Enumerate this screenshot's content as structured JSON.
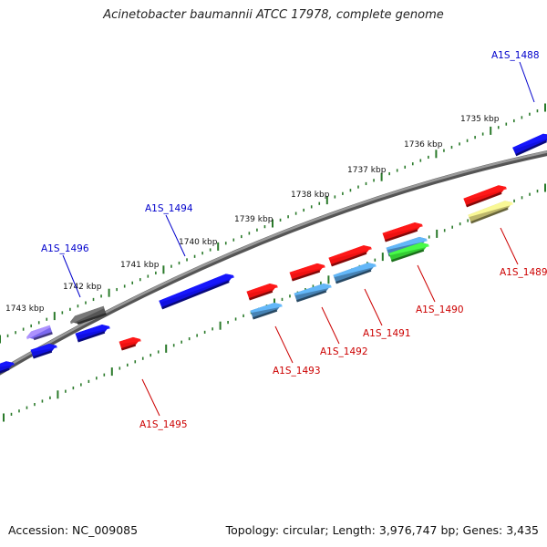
{
  "title": "Acinetobacter baumannii ATCC 17978, complete genome",
  "accession": "Accession: NC_009085",
  "topology": "Topology: circular; Length: 3,976,747 bp; Genes: 3,435",
  "colors": {
    "forward_label": "#0000cc",
    "reverse_label": "#cc0000",
    "backbone": "#8c8c8c",
    "tick": "#2a7a2a",
    "gene_blue": "#1010e0",
    "gene_red": "#ee1111",
    "gene_steel": "#4682b4",
    "gene_gray": "#555555",
    "gene_violet": "#7b68ee",
    "gene_green": "#33cc33",
    "gene_khaki": "#bdb76b"
  },
  "kbp_ticks": [
    "1735 kbp",
    "1736 kbp",
    "1737 kbp",
    "1738 kbp",
    "1739 kbp",
    "1740 kbp",
    "1741 kbp",
    "1742 kbp",
    "1743 kbp"
  ],
  "gene_labels": [
    {
      "id": "A1S_1488",
      "strand": "forward"
    },
    {
      "id": "A1S_1494",
      "strand": "forward"
    },
    {
      "id": "A1S_1496",
      "strand": "forward"
    },
    {
      "id": "A1S_1489",
      "strand": "reverse"
    },
    {
      "id": "A1S_1490",
      "strand": "reverse"
    },
    {
      "id": "A1S_1491",
      "strand": "reverse"
    },
    {
      "id": "A1S_1492",
      "strand": "reverse"
    },
    {
      "id": "A1S_1493",
      "strand": "reverse"
    },
    {
      "id": "A1S_1495",
      "strand": "reverse"
    }
  ]
}
